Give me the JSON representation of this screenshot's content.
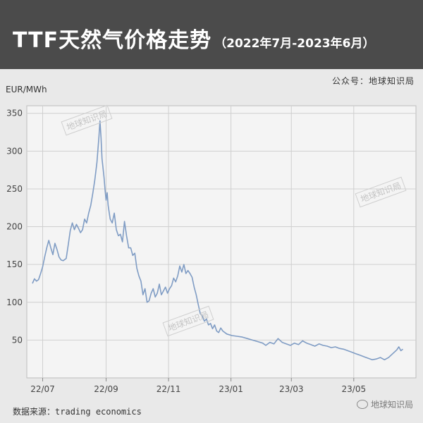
{
  "header": {
    "title": "TTF天然气价格走势",
    "subtitle": "（2022年7月-2023年6月）"
  },
  "source_top": "公众号：地球知识局",
  "unit": "EUR/MWh",
  "source_bottom": {
    "label": "数据来源：",
    "value": "trading economics"
  },
  "watermark": "地球知识局",
  "wechat_label": "地球知识局",
  "colors": {
    "header_bg": "#4b4b4b",
    "page_bg": "#e9e9e9",
    "plot_bg": "#f4f4f4",
    "line": "#7f9cc4",
    "grid": "#cfcfcf"
  },
  "chart_data": {
    "type": "line",
    "xlabel": "",
    "ylabel": "EUR/MWh",
    "ylim": [
      0,
      360
    ],
    "yticks": [
      50,
      100,
      150,
      200,
      250,
      300,
      350
    ],
    "xticks": [
      {
        "label": "22/07",
        "x": 10
      },
      {
        "label": "22/09",
        "x": 72
      },
      {
        "label": "22/11",
        "x": 133
      },
      {
        "label": "23/01",
        "x": 194
      },
      {
        "label": "23/03",
        "x": 253
      },
      {
        "label": "23/05",
        "x": 314
      }
    ],
    "xlim": [
      0,
      372
    ],
    "grid": true,
    "series": [
      {
        "values": [
          [
            0,
            125
          ],
          [
            2,
            131
          ],
          [
            4,
            128
          ],
          [
            6,
            130
          ],
          [
            8,
            138
          ],
          [
            10,
            147
          ],
          [
            12,
            160
          ],
          [
            14,
            172
          ],
          [
            16,
            182
          ],
          [
            18,
            172
          ],
          [
            20,
            163
          ],
          [
            22,
            178
          ],
          [
            24,
            170
          ],
          [
            26,
            160
          ],
          [
            28,
            156
          ],
          [
            30,
            155
          ],
          [
            33,
            158
          ],
          [
            35,
            176
          ],
          [
            37,
            195
          ],
          [
            39,
            205
          ],
          [
            41,
            196
          ],
          [
            43,
            203
          ],
          [
            45,
            198
          ],
          [
            47,
            192
          ],
          [
            49,
            196
          ],
          [
            51,
            210
          ],
          [
            53,
            205
          ],
          [
            55,
            218
          ],
          [
            57,
            228
          ],
          [
            59,
            244
          ],
          [
            61,
            262
          ],
          [
            63,
            285
          ],
          [
            65,
            320
          ],
          [
            66,
            340
          ],
          [
            67,
            318
          ],
          [
            68,
            290
          ],
          [
            70,
            265
          ],
          [
            71,
            248
          ],
          [
            72,
            235
          ],
          [
            73,
            245
          ],
          [
            74,
            228
          ],
          [
            76,
            210
          ],
          [
            78,
            205
          ],
          [
            80,
            218
          ],
          [
            82,
            196
          ],
          [
            84,
            188
          ],
          [
            86,
            190
          ],
          [
            88,
            180
          ],
          [
            90,
            207
          ],
          [
            92,
            188
          ],
          [
            94,
            172
          ],
          [
            96,
            172
          ],
          [
            98,
            162
          ],
          [
            100,
            165
          ],
          [
            102,
            145
          ],
          [
            104,
            135
          ],
          [
            106,
            128
          ],
          [
            108,
            110
          ],
          [
            110,
            118
          ],
          [
            112,
            100
          ],
          [
            114,
            102
          ],
          [
            116,
            112
          ],
          [
            118,
            118
          ],
          [
            120,
            107
          ],
          [
            122,
            112
          ],
          [
            124,
            124
          ],
          [
            126,
            110
          ],
          [
            128,
            115
          ],
          [
            130,
            120
          ],
          [
            132,
            112
          ],
          [
            134,
            118
          ],
          [
            136,
            122
          ],
          [
            138,
            132
          ],
          [
            140,
            127
          ],
          [
            142,
            135
          ],
          [
            144,
            148
          ],
          [
            146,
            140
          ],
          [
            148,
            150
          ],
          [
            150,
            138
          ],
          [
            152,
            142
          ],
          [
            154,
            138
          ],
          [
            156,
            133
          ],
          [
            158,
            120
          ],
          [
            160,
            110
          ],
          [
            162,
            97
          ],
          [
            164,
            85
          ],
          [
            166,
            82
          ],
          [
            168,
            75
          ],
          [
            170,
            78
          ],
          [
            172,
            70
          ],
          [
            174,
            72
          ],
          [
            176,
            65
          ],
          [
            178,
            70
          ],
          [
            180,
            62
          ],
          [
            182,
            60
          ],
          [
            184,
            66
          ],
          [
            186,
            62
          ],
          [
            190,
            58
          ],
          [
            195,
            56
          ],
          [
            200,
            55
          ],
          [
            205,
            54
          ],
          [
            210,
            52
          ],
          [
            215,
            50
          ],
          [
            220,
            48
          ],
          [
            225,
            46
          ],
          [
            228,
            43
          ],
          [
            232,
            47
          ],
          [
            236,
            45
          ],
          [
            240,
            52
          ],
          [
            244,
            47
          ],
          [
            248,
            45
          ],
          [
            252,
            43
          ],
          [
            256,
            46
          ],
          [
            260,
            44
          ],
          [
            264,
            49
          ],
          [
            268,
            46
          ],
          [
            272,
            44
          ],
          [
            276,
            42
          ],
          [
            280,
            45
          ],
          [
            284,
            43
          ],
          [
            288,
            42
          ],
          [
            292,
            40
          ],
          [
            296,
            41
          ],
          [
            300,
            39
          ],
          [
            304,
            38
          ],
          [
            308,
            36
          ],
          [
            312,
            34
          ],
          [
            316,
            32
          ],
          [
            320,
            30
          ],
          [
            324,
            28
          ],
          [
            328,
            26
          ],
          [
            332,
            24
          ],
          [
            336,
            25
          ],
          [
            340,
            27
          ],
          [
            344,
            24
          ],
          [
            348,
            27
          ],
          [
            352,
            32
          ],
          [
            356,
            37
          ],
          [
            358,
            41
          ],
          [
            360,
            36
          ],
          [
            362,
            38
          ]
        ]
      }
    ]
  }
}
